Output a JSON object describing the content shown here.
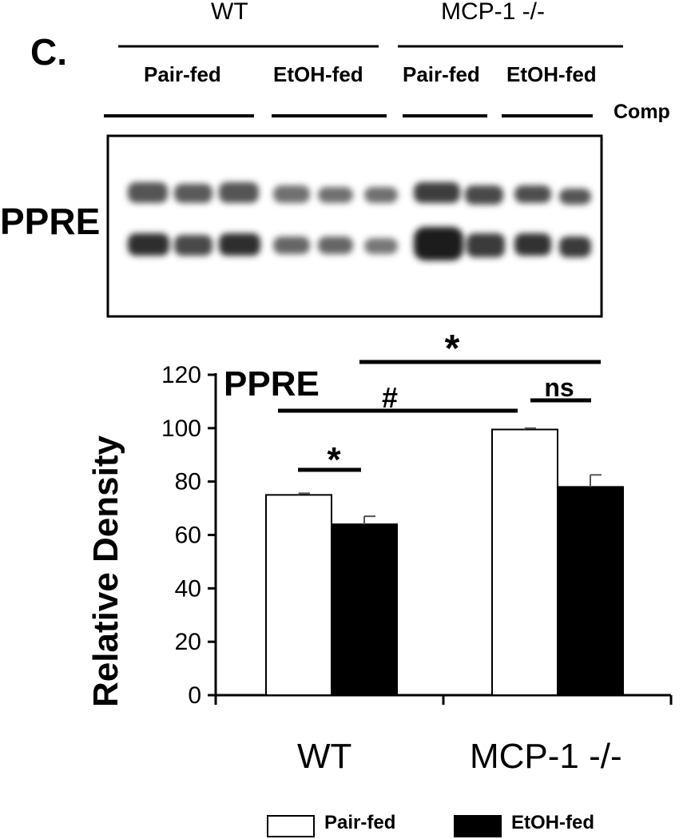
{
  "figure": {
    "panel_label": "C.",
    "groups": [
      {
        "name": "WT",
        "conditions": [
          "Pair-fed",
          "EtOH-fed"
        ]
      },
      {
        "name": "MCP-1  -/-",
        "conditions": [
          "Pair-fed",
          "EtOH-fed"
        ]
      }
    ],
    "comp_label": "Comp",
    "blot_label": "PPRE"
  },
  "chart_data": {
    "type": "bar",
    "title": "PPRE",
    "xlabel": "",
    "ylabel": "Relative Density",
    "ylim": [
      0,
      120
    ],
    "yticks": [
      "0",
      "20",
      "40",
      "60",
      "80",
      "100",
      "120"
    ],
    "categories": [
      "WT",
      "MCP-1 -/-"
    ],
    "series": [
      {
        "name": "Pair-fed",
        "values": [
          75,
          99.5
        ],
        "errors": [
          0.6,
          0.5
        ],
        "color": "#ffffff"
      },
      {
        "name": "EtOH-fed",
        "values": [
          64,
          78
        ],
        "errors": [
          3,
          4.5
        ],
        "color": "#000000"
      }
    ],
    "annotations": [
      {
        "text": "*",
        "between": "WT Pair-fed vs WT EtOH-fed"
      },
      {
        "text": "#",
        "between": "WT Pair-fed vs MCP-1 -/- Pair-fed"
      },
      {
        "text": "ns",
        "between": "MCP-1 -/- Pair-fed vs MCP-1 -/- EtOH-fed"
      },
      {
        "text": "*",
        "between": "WT EtOH-fed vs MCP-1 -/- EtOH-fed"
      }
    ],
    "legend": "bottom"
  }
}
